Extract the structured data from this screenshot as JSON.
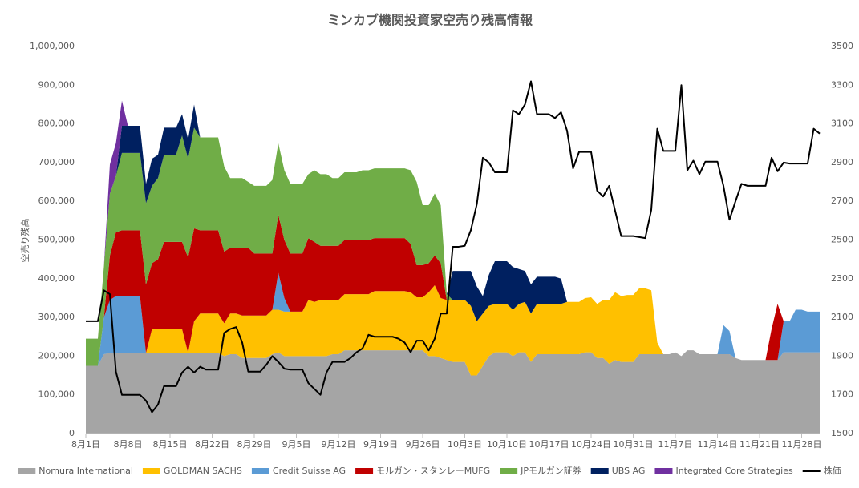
{
  "chart_data": {
    "type": "area",
    "title": "ミンカブ機関投資家空売り残高情報",
    "y_label": "空売り残高",
    "legend": "bottom",
    "grid": false,
    "categories": [
      "8月1日",
      null,
      null,
      null,
      null,
      null,
      null,
      "8月8日",
      null,
      null,
      null,
      null,
      null,
      null,
      "8月15日",
      null,
      null,
      null,
      null,
      null,
      null,
      "8月22日",
      null,
      null,
      null,
      null,
      null,
      null,
      "8月29日",
      null,
      null,
      null,
      null,
      null,
      null,
      "9月5日",
      null,
      null,
      null,
      null,
      null,
      null,
      "9月12日",
      null,
      null,
      null,
      null,
      null,
      null,
      "9月19日",
      null,
      null,
      null,
      null,
      null,
      null,
      "9月26日",
      null,
      null,
      null,
      null,
      null,
      null,
      "10月3日",
      null,
      null,
      null,
      null,
      null,
      null,
      "10月10日",
      null,
      null,
      null,
      null,
      null,
      null,
      "10月17日",
      null,
      null,
      null,
      null,
      null,
      null,
      "10月24日",
      null,
      null,
      null,
      null,
      null,
      null,
      "10月31日",
      null,
      null,
      null,
      null,
      null,
      null,
      "11月7日",
      null,
      null,
      null,
      null,
      null,
      null,
      "11月14日",
      null,
      null,
      null,
      null,
      null,
      null,
      "11月21日",
      null,
      null,
      null,
      null,
      null,
      null,
      "11月28日",
      null,
      null,
      null
    ],
    "ylim": [
      0,
      1000000
    ],
    "yticks": [
      0,
      {
        "value": 100000,
        "label": "100,000"
      },
      {
        "value": 200000,
        "label": "200,000"
      },
      {
        "value": 300000,
        "label": "300,000"
      },
      {
        "value": 400000,
        "label": "400,000"
      },
      {
        "value": 500000,
        "label": "500,000"
      },
      {
        "value": 600000,
        "label": "600,000"
      },
      {
        "value": 700000,
        "label": "700,000"
      },
      {
        "value": 800000,
        "label": "800,000"
      },
      {
        "value": 900000,
        "label": "900,000"
      },
      {
        "value": 1000000,
        "label": "1,000,000"
      }
    ],
    "y2lim": [
      1500,
      3500
    ],
    "y2ticks": [
      1500,
      1700,
      1900,
      2100,
      2300,
      2500,
      2700,
      2900,
      3100,
      3300,
      3500
    ],
    "series": [
      {
        "name": "Nomura International",
        "color": "#a5a5a5",
        "values": [
          175000,
          175000,
          175000,
          205000,
          208000,
          208000,
          208000,
          208000,
          208000,
          208000,
          208000,
          208000,
          208000,
          208000,
          208000,
          208000,
          208000,
          208000,
          208000,
          208000,
          208000,
          208000,
          208000,
          200000,
          205000,
          205000,
          195000,
          195000,
          195000,
          195000,
          195000,
          205000,
          210000,
          200000,
          200000,
          200000,
          200000,
          200000,
          200000,
          200000,
          200000,
          205000,
          205000,
          215000,
          215000,
          215000,
          215000,
          215000,
          215000,
          215000,
          215000,
          215000,
          215000,
          215000,
          215000,
          215000,
          215000,
          200000,
          200000,
          195000,
          190000,
          185000,
          185000,
          185000,
          150000,
          150000,
          175000,
          200000,
          210000,
          210000,
          210000,
          200000,
          210000,
          210000,
          185000,
          205000,
          205000,
          205000,
          205000,
          205000,
          205000,
          205000,
          205000,
          210000,
          210000,
          195000,
          195000,
          180000,
          190000,
          185000,
          185000,
          185000,
          205000,
          205000,
          205000,
          205000,
          205000,
          205000,
          210000,
          200000,
          215000,
          215000,
          205000,
          205000,
          205000,
          205000,
          205000,
          205000,
          195000,
          190000,
          190000,
          190000,
          190000,
          190000,
          190000,
          190000,
          210000,
          210000,
          210000,
          210000,
          210000,
          210000,
          210000
        ]
      },
      {
        "name": "GOLDMAN SACHS",
        "color": "#ffc000",
        "values": [
          0,
          0,
          0,
          0,
          0,
          0,
          0,
          0,
          0,
          0,
          0,
          62000,
          62000,
          62000,
          62000,
          62000,
          62000,
          0,
          82000,
          102000,
          102000,
          102000,
          102000,
          85000,
          105000,
          105000,
          110000,
          110000,
          110000,
          110000,
          110000,
          115000,
          110000,
          115000,
          115000,
          115000,
          115000,
          145000,
          140000,
          145000,
          145000,
          140000,
          140000,
          145000,
          145000,
          145000,
          145000,
          145000,
          153000,
          153000,
          153000,
          153000,
          153000,
          153000,
          150000,
          137000,
          137000,
          165000,
          183000,
          155000,
          155000,
          160000,
          160000,
          160000,
          180000,
          140000,
          135000,
          130000,
          125000,
          125000,
          125000,
          120000,
          125000,
          130000,
          125000,
          130000,
          130000,
          130000,
          130000,
          130000,
          135000,
          135000,
          135000,
          140000,
          142000,
          140000,
          150000,
          165000,
          175000,
          170000,
          173000,
          173000,
          170000,
          170000,
          165000,
          30000,
          0,
          0,
          0,
          0,
          0,
          0,
          0,
          0,
          0,
          0,
          0,
          0,
          0,
          0,
          0,
          0,
          0,
          0,
          0,
          0,
          0,
          0,
          0,
          0,
          0,
          0,
          0
        ]
      },
      {
        "name": "Credit Suisse AG",
        "color": "#5b9bd5",
        "values": [
          0,
          0,
          0,
          95000,
          137000,
          147000,
          147000,
          147000,
          147000,
          147000,
          0,
          0,
          0,
          0,
          0,
          0,
          0,
          0,
          0,
          0,
          0,
          0,
          0,
          0,
          0,
          0,
          0,
          0,
          0,
          0,
          0,
          0,
          95000,
          35000,
          0,
          0,
          0,
          0,
          0,
          0,
          0,
          0,
          0,
          0,
          0,
          0,
          0,
          0,
          0,
          0,
          0,
          0,
          0,
          0,
          0,
          0,
          0,
          0,
          0,
          0,
          0,
          0,
          0,
          0,
          0,
          0,
          0,
          0,
          0,
          0,
          0,
          0,
          0,
          0,
          0,
          0,
          0,
          0,
          0,
          0,
          0,
          0,
          0,
          0,
          0,
          0,
          0,
          0,
          0,
          0,
          0,
          0,
          0,
          0,
          0,
          0,
          0,
          0,
          0,
          0,
          0,
          0,
          0,
          0,
          0,
          0,
          75000,
          60000,
          0,
          0,
          0,
          0,
          0,
          0,
          0,
          0,
          80000,
          80000,
          110000,
          110000,
          105000,
          105000,
          105000
        ]
      },
      {
        "name": "モルガン・スタンレーMUFG",
        "color": "#c00000",
        "values": [
          0,
          0,
          0,
          0,
          115000,
          165000,
          170000,
          170000,
          170000,
          170000,
          177000,
          170000,
          180000,
          225000,
          225000,
          225000,
          225000,
          247000,
          240000,
          215000,
          215000,
          215000,
          215000,
          185000,
          170000,
          170000,
          175000,
          175000,
          160000,
          160000,
          160000,
          145000,
          150000,
          150000,
          150000,
          150000,
          150000,
          160000,
          155000,
          140000,
          140000,
          140000,
          140000,
          140000,
          140000,
          140000,
          140000,
          140000,
          137000,
          137000,
          137000,
          137000,
          137000,
          137000,
          125000,
          83000,
          83000,
          75000,
          77000,
          90000,
          0,
          0,
          0,
          0,
          0,
          0,
          0,
          0,
          0,
          0,
          0,
          0,
          0,
          0,
          0,
          0,
          0,
          0,
          0,
          0,
          0,
          0,
          0,
          0,
          0,
          0,
          0,
          0,
          0,
          0,
          0,
          0,
          0,
          0,
          0,
          0,
          0,
          0,
          0,
          0,
          0,
          0,
          0,
          0,
          0,
          0,
          0,
          0,
          0,
          0,
          0,
          0,
          0,
          0,
          80000,
          145000,
          0,
          0,
          0,
          0,
          0,
          0,
          0
        ]
      },
      {
        "name": "JPモルガン証券",
        "color": "#70ad47",
        "values": [
          70000,
          70000,
          70000,
          130000,
          160000,
          145000,
          200000,
          200000,
          200000,
          200000,
          210000,
          200000,
          210000,
          225000,
          225000,
          225000,
          275000,
          255000,
          260000,
          240000,
          240000,
          240000,
          240000,
          220000,
          180000,
          180000,
          180000,
          170000,
          175000,
          175000,
          175000,
          190000,
          185000,
          180000,
          180000,
          180000,
          180000,
          165000,
          185000,
          185000,
          185000,
          175000,
          175000,
          175000,
          175000,
          175000,
          180000,
          180000,
          180000,
          180000,
          180000,
          180000,
          180000,
          180000,
          190000,
          215000,
          155000,
          150000,
          160000,
          150000,
          15000,
          0,
          0,
          0,
          0,
          0,
          0,
          0,
          0,
          0,
          0,
          0,
          0,
          0,
          0,
          0,
          0,
          0,
          0,
          0,
          0,
          0,
          0,
          0,
          0,
          0,
          0,
          0,
          0,
          0,
          0,
          0,
          0,
          0,
          0,
          0,
          0,
          0,
          0,
          0,
          0,
          0,
          0,
          0,
          0,
          0,
          0,
          0,
          0,
          0,
          0,
          0,
          0,
          0,
          0,
          0,
          0,
          0,
          0,
          0,
          0,
          0,
          0
        ]
      },
      {
        "name": "UBS AG",
        "color": "#002060",
        "values": [
          0,
          0,
          0,
          0,
          0,
          0,
          70000,
          70000,
          70000,
          70000,
          50000,
          70000,
          60000,
          70000,
          70000,
          70000,
          55000,
          50000,
          60000,
          0,
          0,
          0,
          0,
          0,
          0,
          0,
          0,
          0,
          0,
          0,
          0,
          0,
          0,
          0,
          0,
          0,
          0,
          0,
          0,
          0,
          0,
          0,
          0,
          0,
          0,
          0,
          0,
          0,
          0,
          0,
          0,
          0,
          0,
          0,
          0,
          0,
          0,
          0,
          0,
          0,
          0,
          75000,
          75000,
          75000,
          90000,
          90000,
          45000,
          80000,
          110000,
          110000,
          110000,
          110000,
          90000,
          80000,
          75000,
          70000,
          70000,
          70000,
          70000,
          65000,
          0,
          0,
          0,
          0,
          0,
          0,
          0,
          0,
          0,
          0,
          0,
          0,
          0,
          0,
          0,
          0,
          0,
          0,
          0,
          0,
          0,
          0,
          0,
          0,
          0,
          0,
          0,
          0,
          0,
          0,
          0,
          0,
          0,
          0,
          0,
          0,
          0,
          0,
          0,
          0,
          0,
          0,
          0
        ]
      },
      {
        "name": "Integrated Core Strategies",
        "color": "#7030a0",
        "values": [
          0,
          0,
          0,
          0,
          75000,
          85000,
          65000,
          0,
          0,
          0,
          0,
          0,
          0,
          0,
          0,
          0,
          0,
          0,
          0,
          0,
          0,
          0,
          0,
          0,
          0,
          0,
          0,
          0,
          0,
          0,
          0,
          0,
          0,
          0,
          0,
          0,
          0,
          0,
          0,
          0,
          0,
          0,
          0,
          0,
          0,
          0,
          0,
          0,
          0,
          0,
          0,
          0,
          0,
          0,
          0,
          0,
          0,
          0,
          0,
          0,
          0,
          0,
          0,
          0,
          0,
          0,
          0,
          0,
          0,
          0,
          0,
          0,
          0,
          0,
          0,
          0,
          0,
          0,
          0,
          0,
          0,
          0,
          0,
          0,
          0,
          0,
          0,
          0,
          0,
          0,
          0,
          0,
          0,
          0,
          0,
          0,
          0,
          0,
          0,
          0,
          0,
          0,
          0,
          0,
          0,
          0,
          0,
          0,
          0,
          0,
          0,
          0,
          0,
          0,
          0,
          0,
          0,
          0,
          0,
          0,
          0,
          0,
          0
        ]
      },
      {
        "name": "株価",
        "color": "#000000",
        "type": "line",
        "axis": "y2",
        "values": [
          2080,
          2080,
          2080,
          2240,
          2220,
          1820,
          1700,
          1700,
          1700,
          1700,
          1670,
          1610,
          1650,
          1745,
          1745,
          1745,
          1815,
          1845,
          1815,
          1845,
          1830,
          1830,
          1830,
          2020,
          2040,
          2050,
          1970,
          1820,
          1820,
          1820,
          1855,
          1900,
          1870,
          1835,
          1830,
          1830,
          1830,
          1760,
          1730,
          1700,
          1815,
          1870,
          1870,
          1870,
          1890,
          1920,
          1940,
          2010,
          2000,
          2000,
          2000,
          2000,
          1990,
          1970,
          1920,
          1980,
          1980,
          1930,
          1990,
          2120,
          2120,
          2465,
          2465,
          2470,
          2550,
          2685,
          2925,
          2900,
          2850,
          2850,
          2850,
          3170,
          3150,
          3200,
          3320,
          3150,
          3150,
          3150,
          3130,
          3160,
          3065,
          2870,
          2955,
          2955,
          2955,
          2755,
          2725,
          2780,
          2650,
          2520,
          2520,
          2520,
          2515,
          2510,
          2655,
          3075,
          2960,
          2960,
          2960,
          3300,
          2860,
          2910,
          2840,
          2905,
          2905,
          2905,
          2780,
          2605,
          2700,
          2790,
          2780,
          2780,
          2780,
          2780,
          2925,
          2855,
          2900,
          2895,
          2895,
          2895,
          2895,
          3075,
          3050
        ]
      }
    ]
  }
}
